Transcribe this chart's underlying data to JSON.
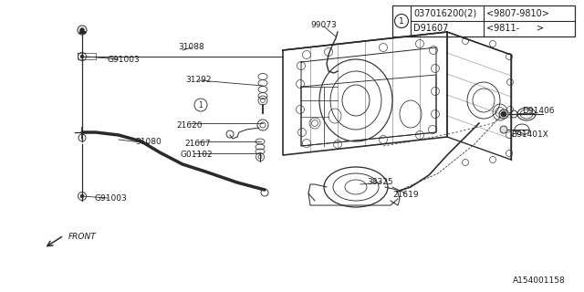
{
  "bg_color": "#ffffff",
  "line_color": "#2a2a2a",
  "text_color": "#1a1a1a",
  "table": {
    "circle_label": "1",
    "col1_row1": "037016200(2)",
    "col2_row1": "<9807-9810>",
    "col1_row2": "D91607",
    "col2_row2": "<9811-      >"
  },
  "diagram_ref": "A154001158",
  "fontsize_labels": 6.5,
  "fontsize_table": 7.0,
  "fontsize_ref": 6.5
}
